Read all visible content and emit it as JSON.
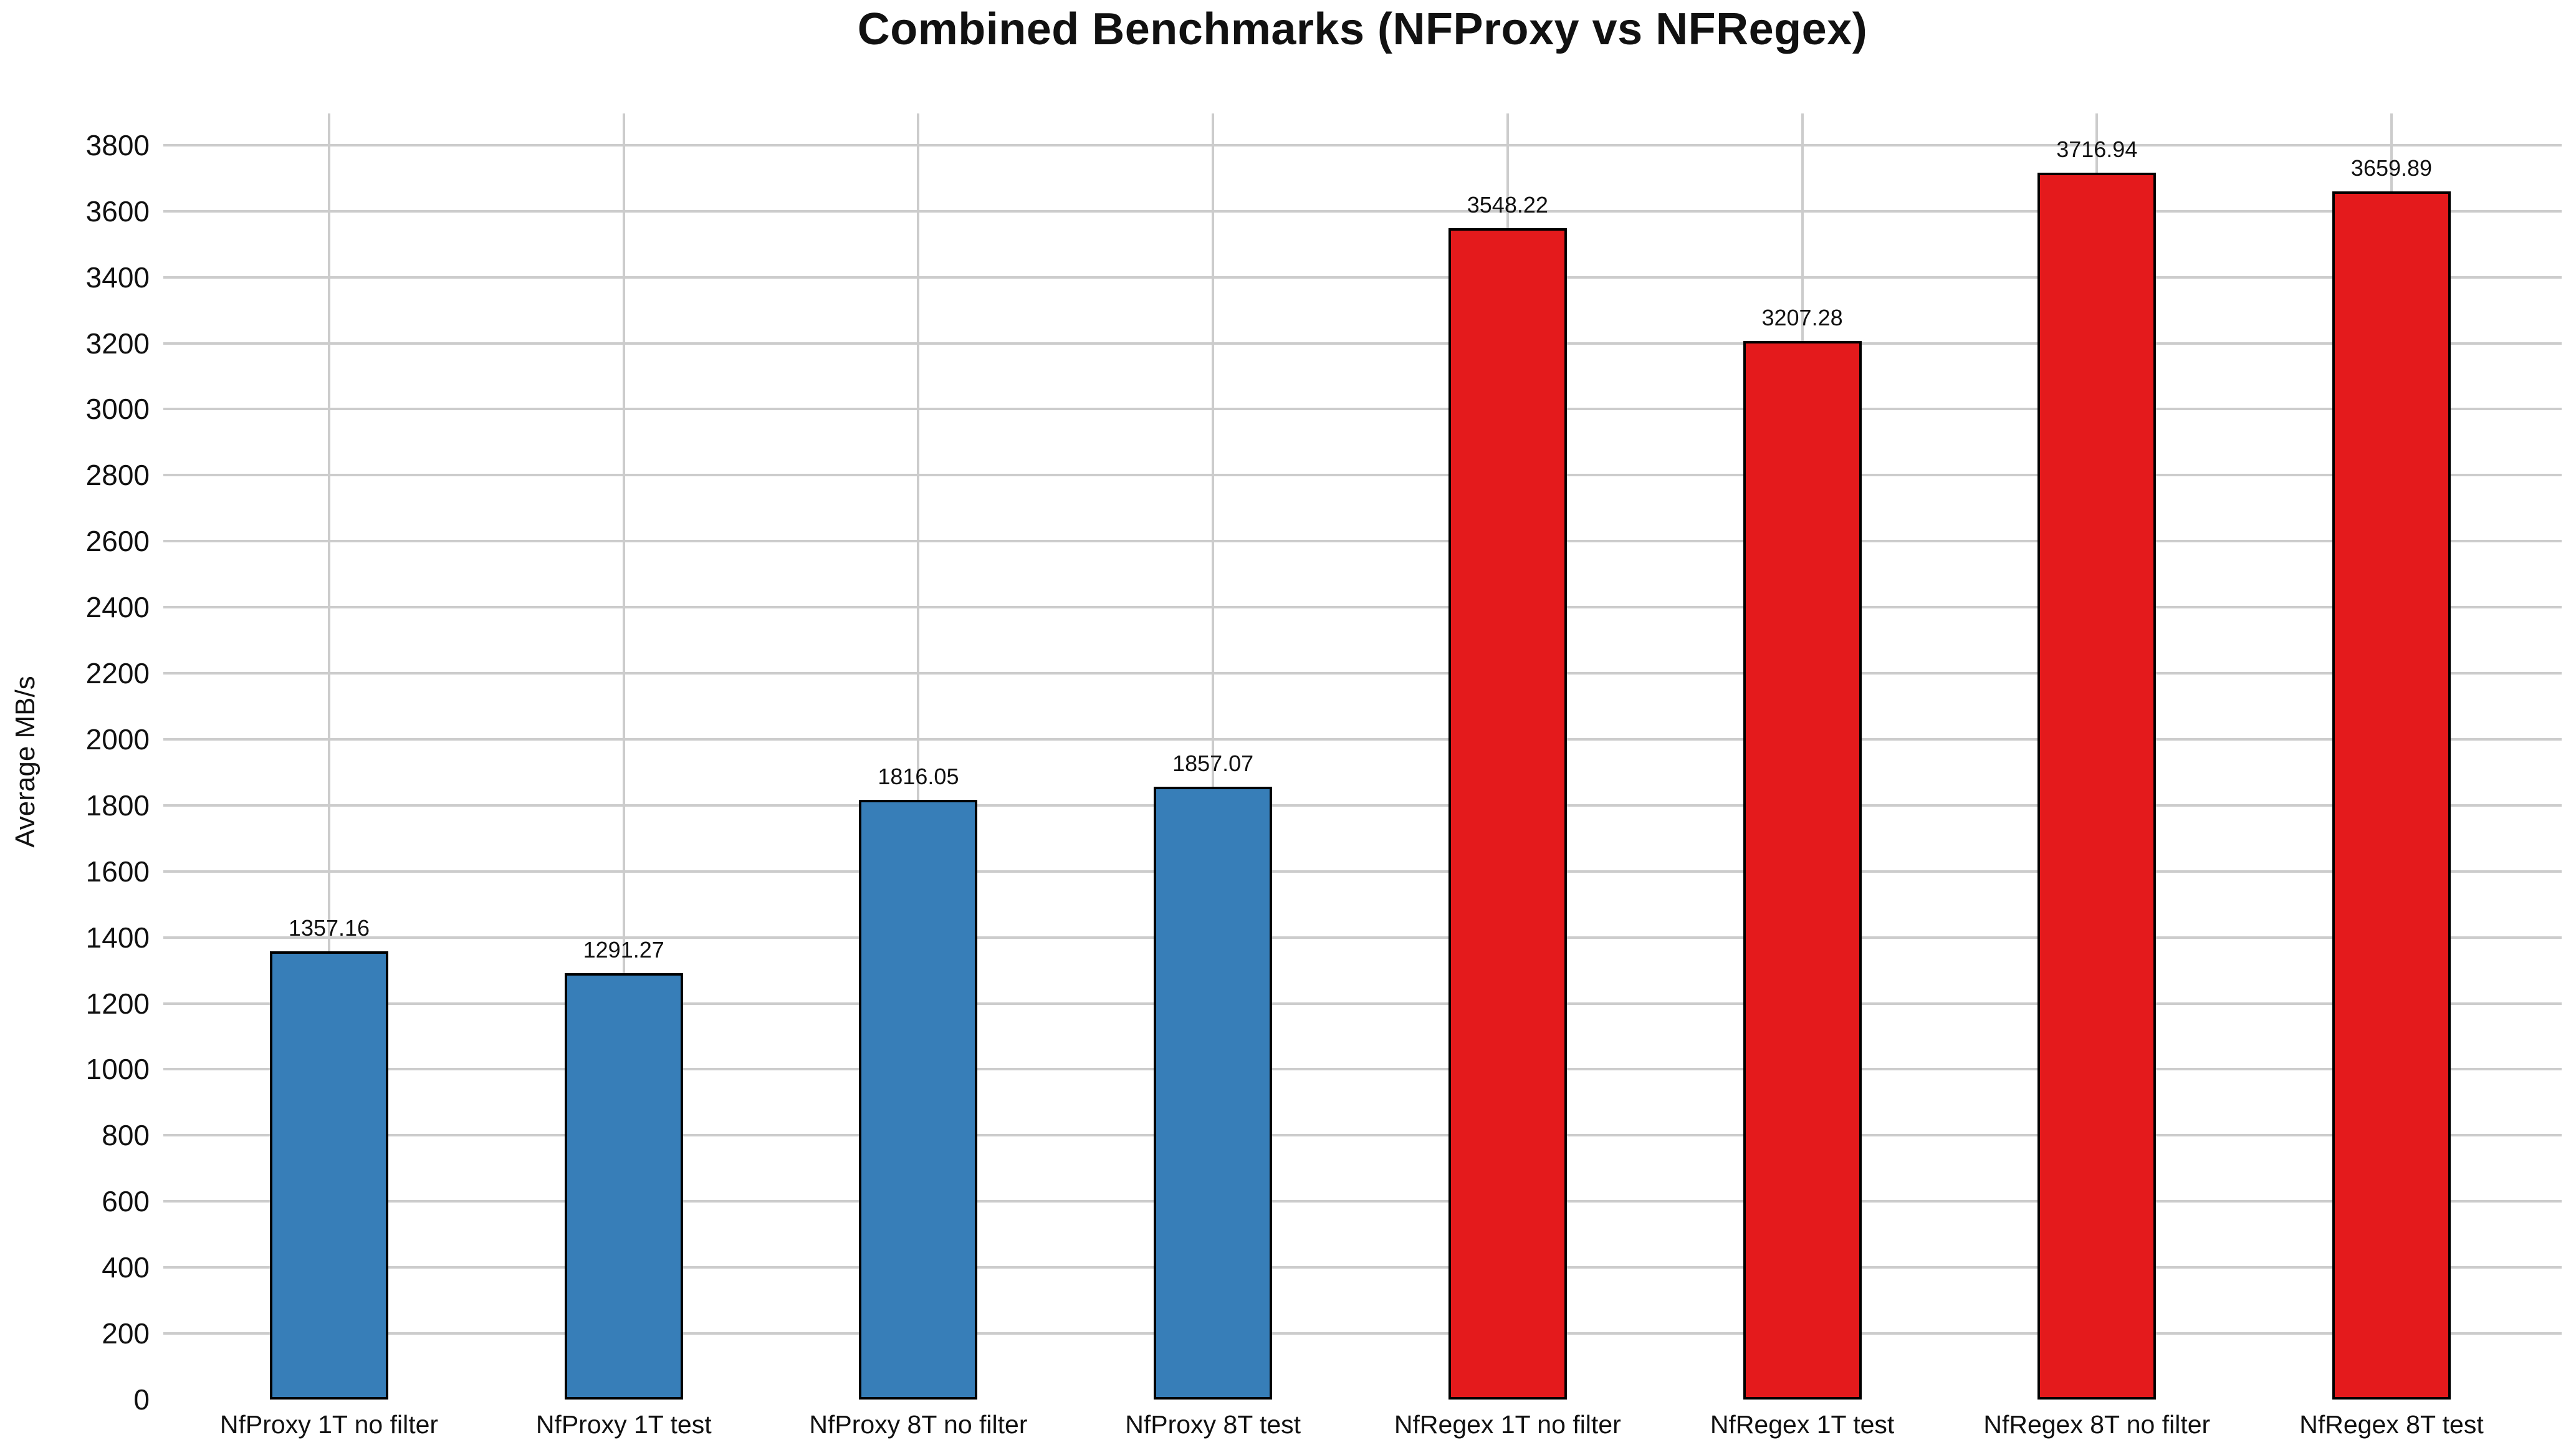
{
  "chart_data": {
    "type": "bar",
    "title": "Combined Benchmarks (NFProxy vs NFRegex)",
    "xlabel": "",
    "ylabel": "Average MB/s",
    "categories": [
      "NfProxy 1T no filter",
      "NfProxy 1T test",
      "NfProxy 8T no filter",
      "NfProxy 8T test",
      "NfRegex 1T no filter",
      "NfRegex 1T test",
      "NfRegex 8T no filter",
      "NfRegex 8T test"
    ],
    "values": [
      1357.16,
      1291.27,
      1816.05,
      1857.07,
      3548.22,
      3207.28,
      3716.94,
      3659.89
    ],
    "value_labels": [
      "1357.16",
      "1291.27",
      "1816.05",
      "1857.07",
      "3548.22",
      "3207.28",
      "3716.94",
      "3659.89"
    ],
    "bar_colors": [
      "#377eb8",
      "#377eb8",
      "#377eb8",
      "#377eb8",
      "#e41a1c",
      "#e41a1c",
      "#e41a1c",
      "#e41a1c"
    ],
    "groups": [
      {
        "name": "NFProxy",
        "color": "#377eb8",
        "bar_indexes": [
          0,
          1,
          2,
          3
        ]
      },
      {
        "name": "NFRegex",
        "color": "#e41a1c",
        "bar_indexes": [
          4,
          5,
          6,
          7
        ]
      }
    ],
    "yticks": [
      0,
      200,
      400,
      600,
      800,
      1000,
      1200,
      1400,
      1600,
      1800,
      2000,
      2200,
      2400,
      2600,
      2800,
      3000,
      3200,
      3400,
      3600,
      3800
    ],
    "ylim": [
      0,
      3896
    ],
    "grid": {
      "horizontal": true,
      "vertical_at_bar_centers": true,
      "color": "#cccccc"
    },
    "bar_edge_color": "#000000",
    "legend": "none"
  }
}
